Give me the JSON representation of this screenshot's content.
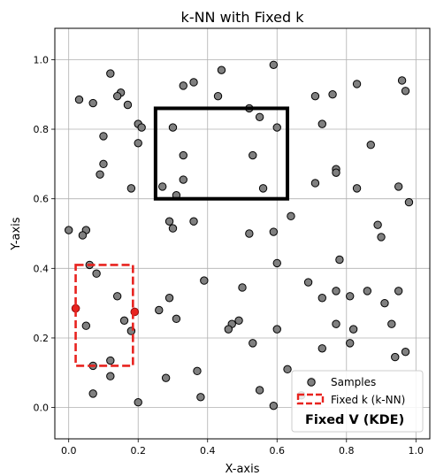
{
  "chart_data": {
    "type": "scatter",
    "title": "k-NN with Fixed k",
    "xlabel": "X-axis",
    "ylabel": "Y-axis",
    "xlim": [
      -0.04,
      1.04
    ],
    "ylim": [
      -0.09,
      1.09
    ],
    "xticks": [
      0.0,
      0.2,
      0.4,
      0.6,
      0.8,
      1.0
    ],
    "yticks": [
      0.0,
      0.2,
      0.4,
      0.6,
      0.8,
      1.0
    ],
    "xtick_labels": [
      "0.0",
      "0.2",
      "0.4",
      "0.6",
      "0.8",
      "1.0"
    ],
    "ytick_labels": [
      "0.0",
      "0.2",
      "0.4",
      "0.6",
      "0.8",
      "1.0"
    ],
    "grid": true,
    "legend_placement": "lower-right",
    "colors": {
      "samples_fill": "#808080",
      "samples_edge": "#000000",
      "knn_highlight": "#e8231f",
      "knn_box": "#e8231f",
      "kde_box": "#000000"
    },
    "series": [
      {
        "name": "Samples",
        "points": [
          [
            0.12,
            0.96
          ],
          [
            0.15,
            0.905
          ],
          [
            0.14,
            0.895
          ],
          [
            0.17,
            0.87
          ],
          [
            0.03,
            0.885
          ],
          [
            0.07,
            0.875
          ],
          [
            0.33,
            0.925
          ],
          [
            0.36,
            0.935
          ],
          [
            0.44,
            0.97
          ],
          [
            0.43,
            0.895
          ],
          [
            0.52,
            0.86
          ],
          [
            0.55,
            0.835
          ],
          [
            0.59,
            0.985
          ],
          [
            0.6,
            0.805
          ],
          [
            0.71,
            0.895
          ],
          [
            0.76,
            0.9
          ],
          [
            0.83,
            0.93
          ],
          [
            0.96,
            0.94
          ],
          [
            0.97,
            0.91
          ],
          [
            0.73,
            0.815
          ],
          [
            0.1,
            0.78
          ],
          [
            0.2,
            0.815
          ],
          [
            0.21,
            0.805
          ],
          [
            0.2,
            0.76
          ],
          [
            0.3,
            0.805
          ],
          [
            0.33,
            0.725
          ],
          [
            0.1,
            0.7
          ],
          [
            0.09,
            0.67
          ],
          [
            0.18,
            0.63
          ],
          [
            0.27,
            0.635
          ],
          [
            0.33,
            0.655
          ],
          [
            0.31,
            0.61
          ],
          [
            0.53,
            0.725
          ],
          [
            0.56,
            0.63
          ],
          [
            0.87,
            0.755
          ],
          [
            0.77,
            0.685
          ],
          [
            0.77,
            0.675
          ],
          [
            0.71,
            0.645
          ],
          [
            0.83,
            0.63
          ],
          [
            0.95,
            0.635
          ],
          [
            0.98,
            0.59
          ],
          [
            0.0,
            0.51
          ],
          [
            0.05,
            0.51
          ],
          [
            0.04,
            0.495
          ],
          [
            0.29,
            0.535
          ],
          [
            0.3,
            0.515
          ],
          [
            0.36,
            0.535
          ],
          [
            0.52,
            0.5
          ],
          [
            0.59,
            0.505
          ],
          [
            0.64,
            0.55
          ],
          [
            0.6,
            0.415
          ],
          [
            0.89,
            0.525
          ],
          [
            0.9,
            0.49
          ],
          [
            0.06,
            0.41
          ],
          [
            0.08,
            0.385
          ],
          [
            0.39,
            0.365
          ],
          [
            0.5,
            0.345
          ],
          [
            0.69,
            0.36
          ],
          [
            0.73,
            0.315
          ],
          [
            0.77,
            0.335
          ],
          [
            0.81,
            0.32
          ],
          [
            0.86,
            0.335
          ],
          [
            0.95,
            0.335
          ],
          [
            0.78,
            0.425
          ],
          [
            0.91,
            0.3
          ],
          [
            0.14,
            0.32
          ],
          [
            0.29,
            0.315
          ],
          [
            0.26,
            0.28
          ],
          [
            0.19,
            0.275
          ],
          [
            0.16,
            0.25
          ],
          [
            0.18,
            0.22
          ],
          [
            0.05,
            0.235
          ],
          [
            0.31,
            0.255
          ],
          [
            0.47,
            0.24
          ],
          [
            0.49,
            0.25
          ],
          [
            0.46,
            0.225
          ],
          [
            0.6,
            0.225
          ],
          [
            0.53,
            0.185
          ],
          [
            0.77,
            0.24
          ],
          [
            0.82,
            0.225
          ],
          [
            0.81,
            0.185
          ],
          [
            0.73,
            0.17
          ],
          [
            0.93,
            0.24
          ],
          [
            0.94,
            0.145
          ],
          [
            0.97,
            0.16
          ],
          [
            0.12,
            0.135
          ],
          [
            0.07,
            0.12
          ],
          [
            0.12,
            0.09
          ],
          [
            0.28,
            0.085
          ],
          [
            0.37,
            0.105
          ],
          [
            0.63,
            0.11
          ],
          [
            0.07,
            0.04
          ],
          [
            0.2,
            0.015
          ],
          [
            0.38,
            0.03
          ],
          [
            0.55,
            0.05
          ],
          [
            0.59,
            0.005
          ],
          [
            0.67,
            0.035
          ],
          [
            0.7,
            0.075
          ],
          [
            0.02,
            0.285
          ]
        ]
      }
    ],
    "highlighted_points": [
      [
        0.02,
        0.285
      ],
      [
        0.19,
        0.275
      ]
    ],
    "rectangles": [
      {
        "name": "Fixed k (k-NN)",
        "style": "dashed",
        "x0": 0.02,
        "x1": 0.185,
        "y0": 0.12,
        "y1": 0.41
      },
      {
        "name": "Fixed V (KDE)",
        "style": "solid",
        "x0": 0.25,
        "x1": 0.63,
        "y0": 0.6,
        "y1": 0.86
      }
    ],
    "legend": [
      "Samples",
      "Fixed k (k-NN)",
      "Fixed V (KDE)"
    ]
  }
}
